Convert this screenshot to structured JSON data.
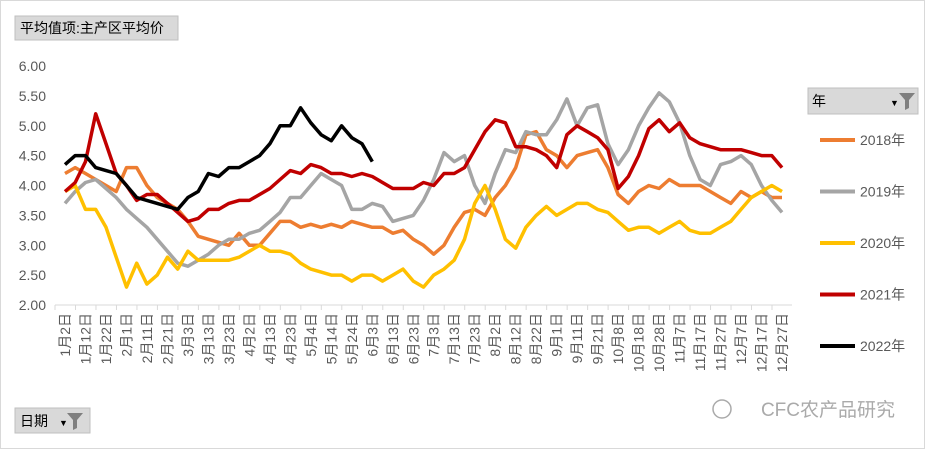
{
  "chart_data": {
    "type": "line",
    "title": "平均值项:主产区平均价",
    "x_field_button": "日期",
    "legend_title": "年",
    "watermark": "CFC农产品研究",
    "legend_position": "right",
    "categories": [
      "1月2日",
      null,
      "1月12日",
      null,
      "1月22日",
      null,
      "2月1日",
      null,
      "2月11日",
      null,
      "2月21日",
      null,
      "3月3日",
      null,
      "3月13日",
      null,
      "3月23日",
      null,
      "4月2日",
      null,
      "4月13日",
      null,
      "4月23日",
      null,
      "5月4日",
      null,
      "5月14日",
      null,
      "5月24日",
      null,
      "6月3日",
      null,
      "6月13日",
      null,
      "6月23日",
      null,
      "7月3日",
      null,
      "7月13日",
      null,
      "7月23日",
      null,
      "8月2日",
      null,
      "8月12日",
      null,
      "8月22日",
      null,
      "9月1日",
      null,
      "9月11日",
      null,
      "9月21日",
      null,
      "10月8日",
      null,
      "10月18日",
      null,
      "10月28日",
      null,
      "11月7日",
      null,
      "11月17日",
      null,
      "11月27日",
      null,
      "12月7日",
      null,
      "12月17日",
      null,
      "12月27日"
    ],
    "ylim": [
      2,
      6
    ],
    "yticks": [
      {
        "value": 2,
        "label": "2.00"
      },
      {
        "value": 2.5,
        "label": "2.50"
      },
      {
        "value": 3,
        "label": "3.00"
      },
      {
        "value": 3.5,
        "label": "3.50"
      },
      {
        "value": 4,
        "label": "4.00"
      },
      {
        "value": 4.5,
        "label": "4.50"
      },
      {
        "value": 5,
        "label": "5.00"
      },
      {
        "value": 5.5,
        "label": "5.50"
      },
      {
        "value": 6,
        "label": "6.00"
      }
    ],
    "grid": false,
    "series": [
      {
        "name": "2018年",
        "color": "#ed7d31",
        "values": [
          4.2,
          4.3,
          4.2,
          4.1,
          4.0,
          3.9,
          4.3,
          4.3,
          4.0,
          3.8,
          3.7,
          3.6,
          3.4,
          3.15,
          3.1,
          3.05,
          3.0,
          3.2,
          3.0,
          3.0,
          3.2,
          3.4,
          3.4,
          3.3,
          3.35,
          3.3,
          3.35,
          3.3,
          3.4,
          3.35,
          3.3,
          3.3,
          3.2,
          3.25,
          3.1,
          3.0,
          2.85,
          3.0,
          3.3,
          3.55,
          3.6,
          3.5,
          3.8,
          4.0,
          4.3,
          4.85,
          4.9,
          4.6,
          4.5,
          4.3,
          4.5,
          4.55,
          4.6,
          4.3,
          3.85,
          3.7,
          3.9,
          4.0,
          3.95,
          4.1,
          4.0,
          4.0,
          4.0,
          3.9,
          3.8,
          3.7,
          3.9,
          3.8,
          3.9,
          3.8,
          3.8
        ]
      },
      {
        "name": "2019年",
        "color": "#a5a5a5",
        "values": [
          3.7,
          3.9,
          4.05,
          4.1,
          3.95,
          3.8,
          3.6,
          3.45,
          3.3,
          3.1,
          2.9,
          2.7,
          2.65,
          2.75,
          2.85,
          3.0,
          3.1,
          3.1,
          3.2,
          3.25,
          3.4,
          3.55,
          3.8,
          3.8,
          4.0,
          4.2,
          4.1,
          4.0,
          3.6,
          3.6,
          3.7,
          3.65,
          3.4,
          3.45,
          3.5,
          3.75,
          4.1,
          4.55,
          4.4,
          4.5,
          4.0,
          3.7,
          4.2,
          4.6,
          4.55,
          4.9,
          4.85,
          4.85,
          5.1,
          5.45,
          5.0,
          5.3,
          5.35,
          4.7,
          4.35,
          4.6,
          5.0,
          5.3,
          5.55,
          5.4,
          5.05,
          4.5,
          4.1,
          4.0,
          4.35,
          4.4,
          4.5,
          4.35,
          4.0,
          3.75,
          3.55
        ]
      },
      {
        "name": "2020年",
        "color": "#ffc000",
        "values": [
          3.9,
          4.0,
          3.6,
          3.6,
          3.3,
          2.8,
          2.3,
          2.7,
          2.35,
          2.5,
          2.8,
          2.6,
          2.9,
          2.75,
          2.75,
          2.75,
          2.75,
          2.8,
          2.9,
          3.0,
          2.9,
          2.9,
          2.85,
          2.7,
          2.6,
          2.55,
          2.5,
          2.5,
          2.4,
          2.5,
          2.5,
          2.4,
          2.5,
          2.6,
          2.4,
          2.3,
          2.5,
          2.6,
          2.75,
          3.1,
          3.7,
          4.0,
          3.6,
          3.1,
          2.95,
          3.3,
          3.5,
          3.65,
          3.5,
          3.6,
          3.7,
          3.7,
          3.6,
          3.55,
          3.4,
          3.25,
          3.3,
          3.3,
          3.2,
          3.3,
          3.4,
          3.25,
          3.2,
          3.2,
          3.3,
          3.4,
          3.6,
          3.8,
          3.9,
          4.0,
          3.9
        ]
      },
      {
        "name": "2021年",
        "color": "#c00000",
        "values": [
          3.9,
          4.05,
          4.4,
          5.2,
          4.7,
          4.2,
          4.0,
          3.75,
          3.85,
          3.85,
          3.7,
          3.55,
          3.4,
          3.45,
          3.6,
          3.6,
          3.7,
          3.75,
          3.75,
          3.85,
          3.95,
          4.1,
          4.25,
          4.2,
          4.35,
          4.3,
          4.2,
          4.2,
          4.15,
          4.2,
          4.15,
          4.05,
          3.95,
          3.95,
          3.95,
          4.05,
          4.0,
          4.2,
          4.2,
          4.3,
          4.6,
          4.9,
          5.1,
          5.05,
          4.65,
          4.65,
          4.6,
          4.5,
          4.3,
          4.85,
          5.0,
          4.9,
          4.8,
          4.6,
          3.95,
          4.15,
          4.5,
          4.95,
          5.1,
          4.9,
          5.05,
          4.8,
          4.7,
          4.65,
          4.6,
          4.6,
          4.6,
          4.55,
          4.5,
          4.5,
          4.3
        ]
      },
      {
        "name": "2022年",
        "color": "#000000",
        "values": [
          4.35,
          4.5,
          4.5,
          4.3,
          4.25,
          4.2,
          4.0,
          3.8,
          3.75,
          3.7,
          3.65,
          3.6,
          3.8,
          3.9,
          4.2,
          4.15,
          4.3,
          4.3,
          4.4,
          4.5,
          4.7,
          5.0,
          5.0,
          5.3,
          5.05,
          4.85,
          4.75,
          5.0,
          4.8,
          4.7,
          4.4,
          null,
          null,
          null,
          null,
          null,
          null,
          null,
          null,
          null,
          null,
          null,
          null,
          null,
          null,
          null,
          null,
          null,
          null,
          null,
          null,
          null,
          null,
          null,
          null,
          null,
          null,
          null,
          null,
          null,
          null,
          null,
          null,
          null,
          null,
          null,
          null,
          null,
          null,
          null,
          null
        ]
      }
    ]
  }
}
